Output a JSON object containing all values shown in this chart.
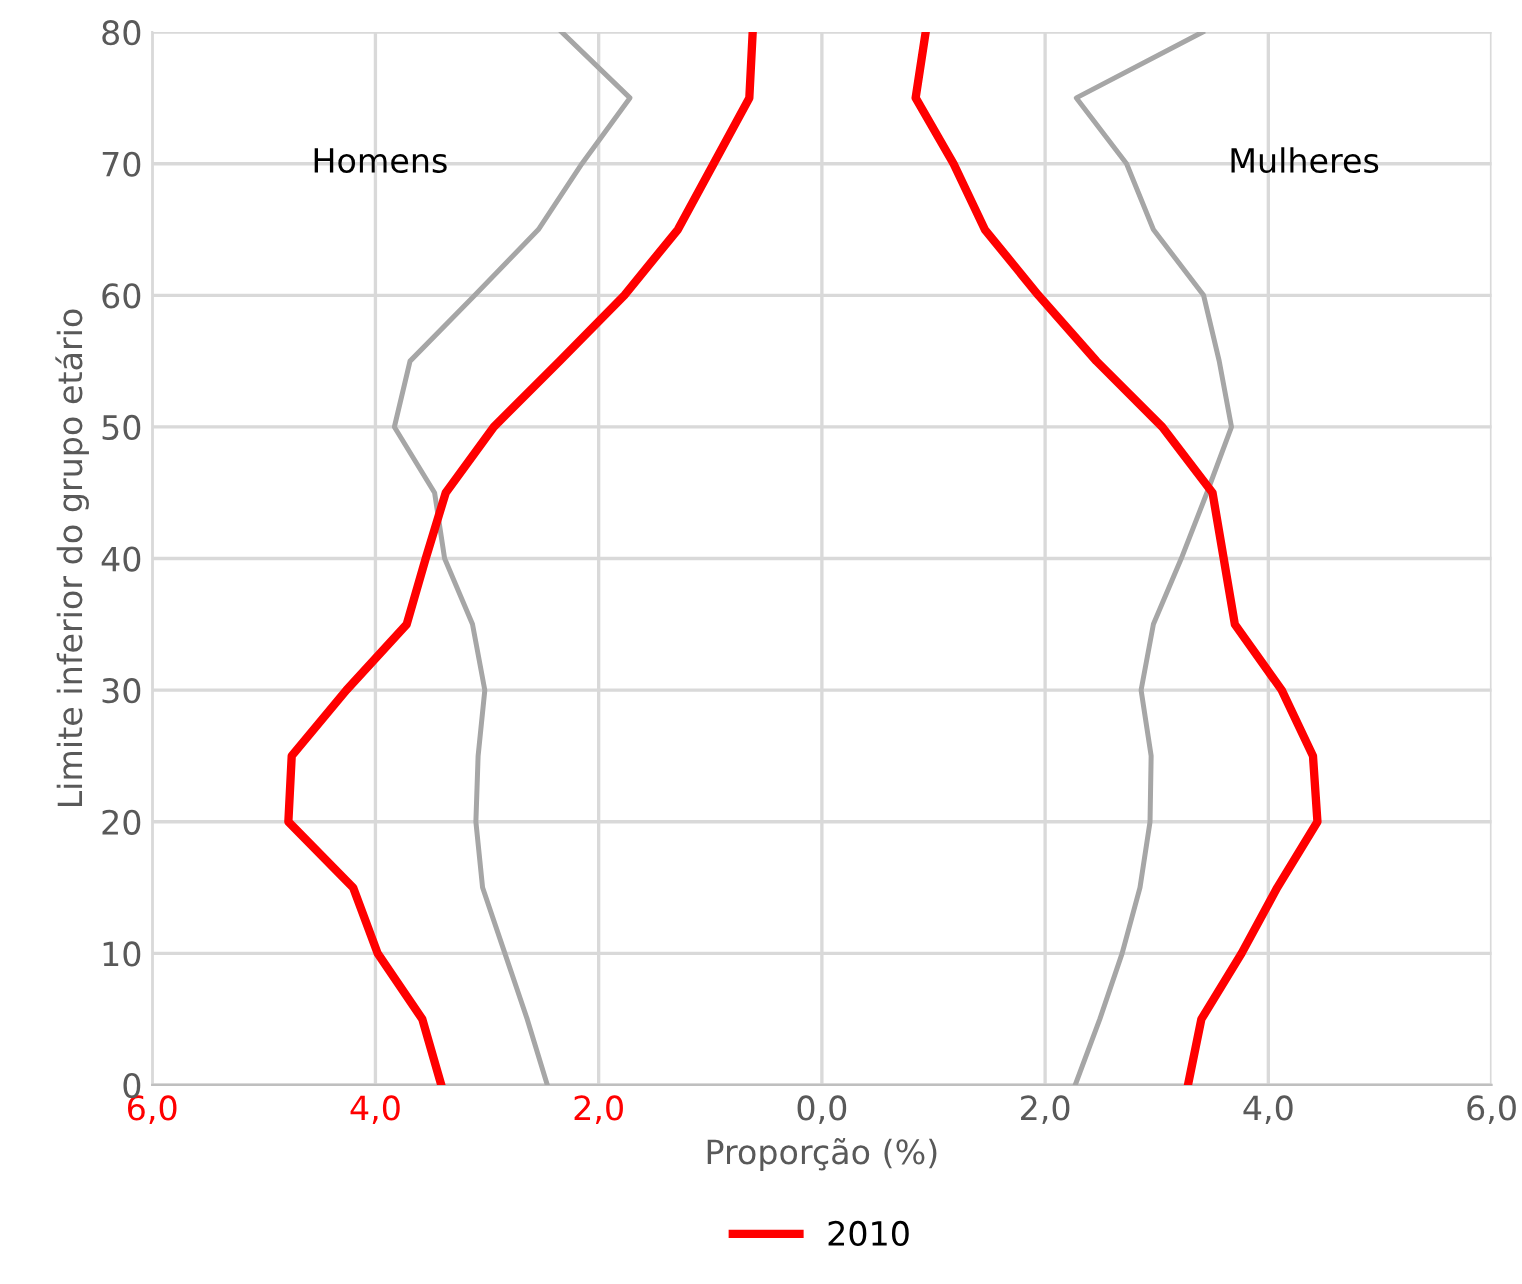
{
  "chart_data": {
    "type": "line",
    "xlabel": "Proporção (%)",
    "ylabel": "Limite inferior do grupo etário",
    "series": [
      {
        "name": "2010",
        "color": "#ff0000",
        "x": [
          -3.41,
          -3.58,
          -3.98,
          -4.2,
          -4.78,
          -4.75,
          -4.26,
          -3.72,
          -3.55,
          -3.37,
          -2.94,
          -2.35,
          -1.77,
          -1.29,
          -0.97,
          -0.65,
          -0.62
        ],
        "values": [
          0,
          5,
          10,
          15,
          20,
          25,
          30,
          35,
          40,
          45,
          50,
          55,
          60,
          65,
          70,
          75,
          80
        ]
      },
      {
        "color": "#ff0000",
        "x": [
          3.28,
          3.4,
          3.76,
          4.08,
          4.44,
          4.4,
          4.12,
          3.7,
          3.6,
          3.5,
          3.05,
          2.46,
          1.94,
          1.46,
          1.18,
          0.84,
          0.93
        ],
        "values": [
          0,
          5,
          10,
          15,
          20,
          25,
          30,
          35,
          40,
          45,
          50,
          55,
          60,
          65,
          70,
          75,
          80
        ]
      },
      {
        "color": "#a6a6a6",
        "x": [
          -2.46,
          -2.64,
          -2.84,
          -3.04,
          -3.1,
          -3.08,
          -3.02,
          -3.13,
          -3.38,
          -3.47,
          -3.83,
          -3.69,
          -3.11,
          -2.54,
          -2.15,
          -1.72,
          -2.33
        ],
        "values": [
          0,
          5,
          10,
          15,
          20,
          25,
          30,
          35,
          40,
          45,
          50,
          55,
          60,
          65,
          70,
          75,
          80
        ]
      },
      {
        "color": "#a6a6a6",
        "x": [
          2.27,
          2.49,
          2.69,
          2.85,
          2.94,
          2.95,
          2.86,
          2.97,
          3.22,
          3.45,
          3.67,
          3.56,
          3.42,
          2.97,
          2.73,
          2.28,
          3.41
        ],
        "values": [
          0,
          5,
          10,
          15,
          20,
          25,
          30,
          35,
          40,
          45,
          50,
          55,
          60,
          65,
          70,
          75,
          80
        ]
      }
    ],
    "xlim": [
      -6,
      6
    ],
    "xticks": [
      {
        "value": -6,
        "label": "6,0"
      },
      {
        "value": -4,
        "label": "4,0"
      },
      {
        "value": -2,
        "label": "2,0"
      },
      {
        "value": 0,
        "label": "0,0"
      },
      {
        "value": 2,
        "label": "2,0"
      },
      {
        "value": 4,
        "label": "4,0"
      },
      {
        "value": 6,
        "label": "6,0"
      }
    ],
    "ylim": [
      0,
      80
    ],
    "yticks": [
      0,
      10,
      20,
      30,
      40,
      50,
      60,
      70,
      80
    ],
    "annotations": [
      "Homens",
      "Mulheres"
    ],
    "grid": true,
    "legend": "bottom",
    "marker": "none",
    "line_style": "solid"
  }
}
